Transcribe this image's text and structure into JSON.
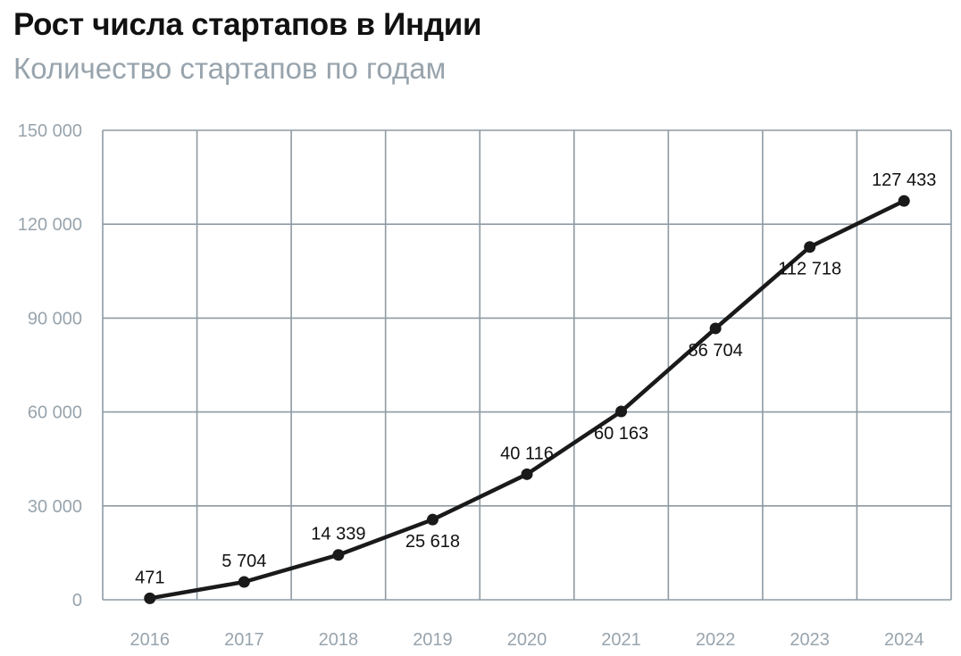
{
  "title": "Рост числа стартапов в Индии",
  "subtitle": "Количество стартапов по годам",
  "colors": {
    "line": "#1a1a1a",
    "grid": "#8e9aa3",
    "tick_text": "#98a4ad",
    "label_text": "#111111"
  },
  "chart_data": {
    "type": "line",
    "title": "Рост числа стартапов в Индии",
    "subtitle": "Количество стартапов по годам",
    "xlabel": "",
    "ylabel": "",
    "categories": [
      "2016",
      "2017",
      "2018",
      "2019",
      "2020",
      "2021",
      "2022",
      "2023",
      "2024"
    ],
    "series": [
      {
        "values": [
          471,
          5704,
          14339,
          25618,
          40116,
          60163,
          86704,
          112718,
          127433
        ],
        "labels": [
          "471",
          "5 704",
          "14 339",
          "25 618",
          "40 116",
          "60 163",
          "86 704",
          "112 718",
          "127 433"
        ],
        "label_position": [
          "above",
          "above",
          "above",
          "below",
          "above",
          "below",
          "below",
          "below",
          "above"
        ]
      }
    ],
    "ylim": [
      0,
      150000
    ],
    "yticks": [
      0,
      30000,
      60000,
      90000,
      120000,
      150000
    ],
    "ytick_labels": [
      "0",
      "30 000",
      "60 000",
      "90 000",
      "120 000",
      "150 000"
    ],
    "grid": true,
    "legend": "none"
  }
}
